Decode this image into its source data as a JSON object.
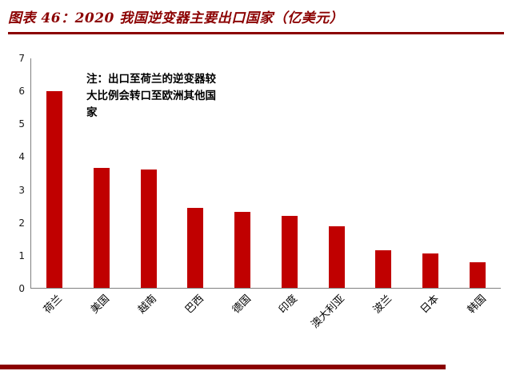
{
  "header": {
    "title": "图表 46：2020 我国逆变器主要出口国家（亿美元）"
  },
  "chart_data": {
    "type": "bar",
    "title": "图表 46：2020 我国逆变器主要出口国家（亿美元）",
    "categories": [
      "荷兰",
      "美国",
      "越南",
      "巴西",
      "德国",
      "印度",
      "澳大利亚",
      "波兰",
      "日本",
      "韩国"
    ],
    "values": [
      6.0,
      3.65,
      3.62,
      2.45,
      2.32,
      2.2,
      1.87,
      1.15,
      1.05,
      0.78
    ],
    "xlabel": "",
    "ylabel": "",
    "ylim": [
      0,
      7
    ],
    "yticks": [
      0,
      1,
      2,
      3,
      4,
      5,
      6,
      7
    ],
    "grid": false,
    "legend": "none",
    "annotation": "注：出口至荷兰的逆变器较大比例会转口至欧洲其他国家",
    "bar_color": "#C00000",
    "accent_color": "#8B0000"
  }
}
